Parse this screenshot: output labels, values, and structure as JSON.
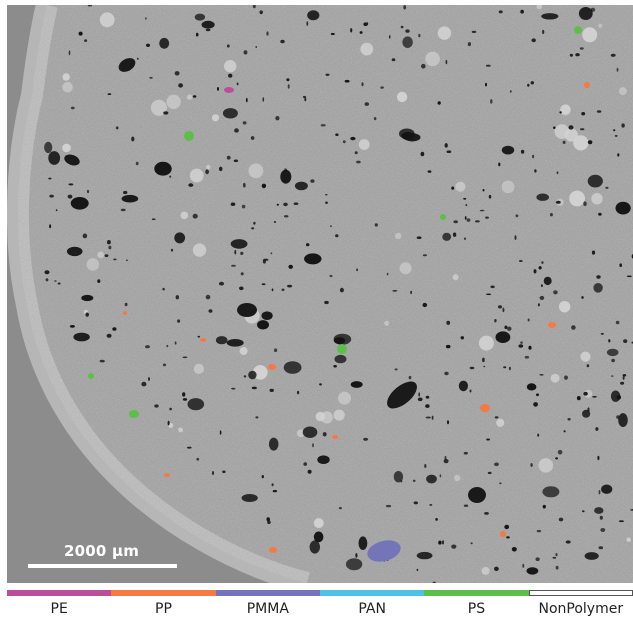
{
  "scale_bar": {
    "label": "2000 µm"
  },
  "legend": [
    {
      "label": "PE",
      "color": "#b94e9c"
    },
    {
      "label": "PP",
      "color": "#f47a42"
    },
    {
      "label": "PMMA",
      "color": "#7375b8"
    },
    {
      "label": "PAN",
      "color": "#4cc3e3"
    },
    {
      "label": "PS",
      "color": "#5cbf4a"
    },
    {
      "label": "NonPolymer",
      "color": "#ffffff"
    }
  ],
  "colors": {
    "background": "#8c8c8c",
    "sample": "#a2a2a2",
    "pore": "#141414",
    "inclusion": "#d2d2d2",
    "rim": "#c4c4c4"
  }
}
